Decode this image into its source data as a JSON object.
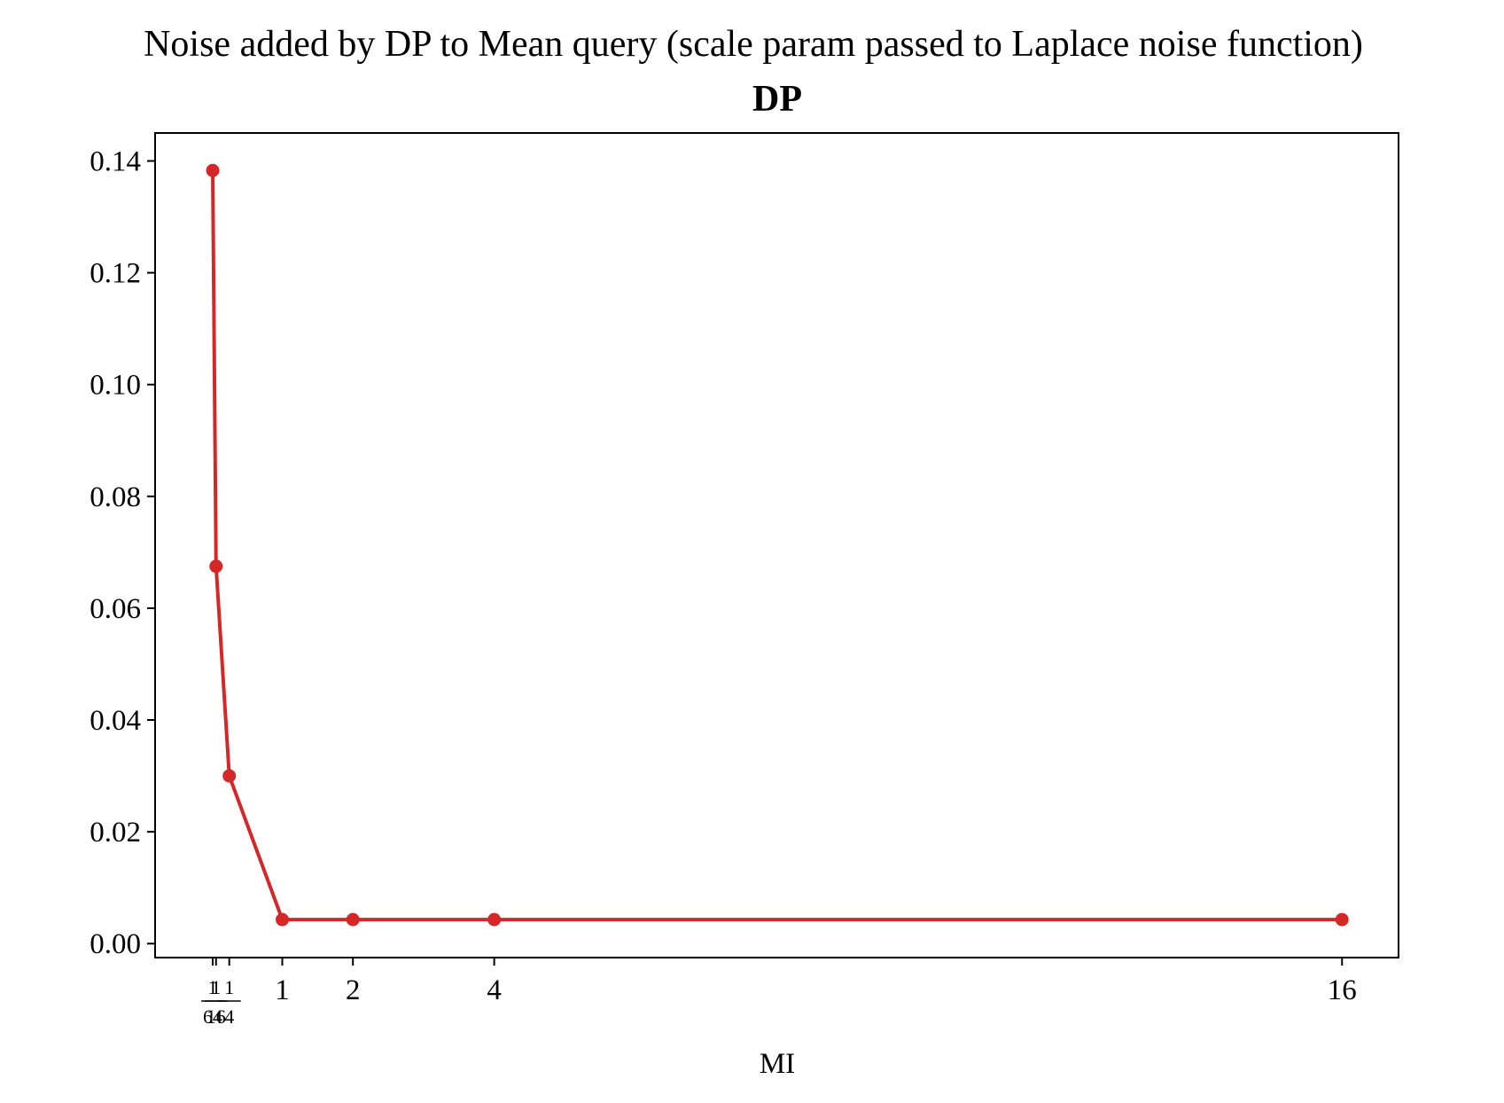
{
  "chart_data": {
    "type": "line",
    "title": "Noise added by DP to Mean query (scale param passed to Laplace noise function)",
    "subtitle": "DP",
    "xlabel": "MI",
    "ylabel": "",
    "ylim": [
      -0.0025,
      0.145
    ],
    "xlim": [
      -0.8,
      16.8
    ],
    "grid": false,
    "legend": "none",
    "series_color": "#d62728",
    "x_ticks": [
      {
        "value": 0.015625,
        "num": "1",
        "den": "64"
      },
      {
        "value": 0.0625,
        "num": "1",
        "den": "16"
      },
      {
        "value": 0.25,
        "num": "1",
        "den": "4"
      },
      {
        "value": 1,
        "label": "1"
      },
      {
        "value": 2,
        "label": "2"
      },
      {
        "value": 4,
        "label": "4"
      },
      {
        "value": 16,
        "label": "16"
      }
    ],
    "y_ticks": [
      {
        "value": 0.0,
        "label": "0.00"
      },
      {
        "value": 0.02,
        "label": "0.02"
      },
      {
        "value": 0.04,
        "label": "0.04"
      },
      {
        "value": 0.06,
        "label": "0.06"
      },
      {
        "value": 0.08,
        "label": "0.08"
      },
      {
        "value": 0.1,
        "label": "0.10"
      },
      {
        "value": 0.12,
        "label": "0.12"
      },
      {
        "value": 0.14,
        "label": "0.14"
      }
    ],
    "series": [
      {
        "x": [
          0.015625,
          0.0625,
          0.25,
          1,
          2,
          4,
          16
        ],
        "y": [
          0.1383,
          0.0675,
          0.03,
          0.0043,
          0.0043,
          0.0043,
          0.0043
        ]
      }
    ]
  }
}
